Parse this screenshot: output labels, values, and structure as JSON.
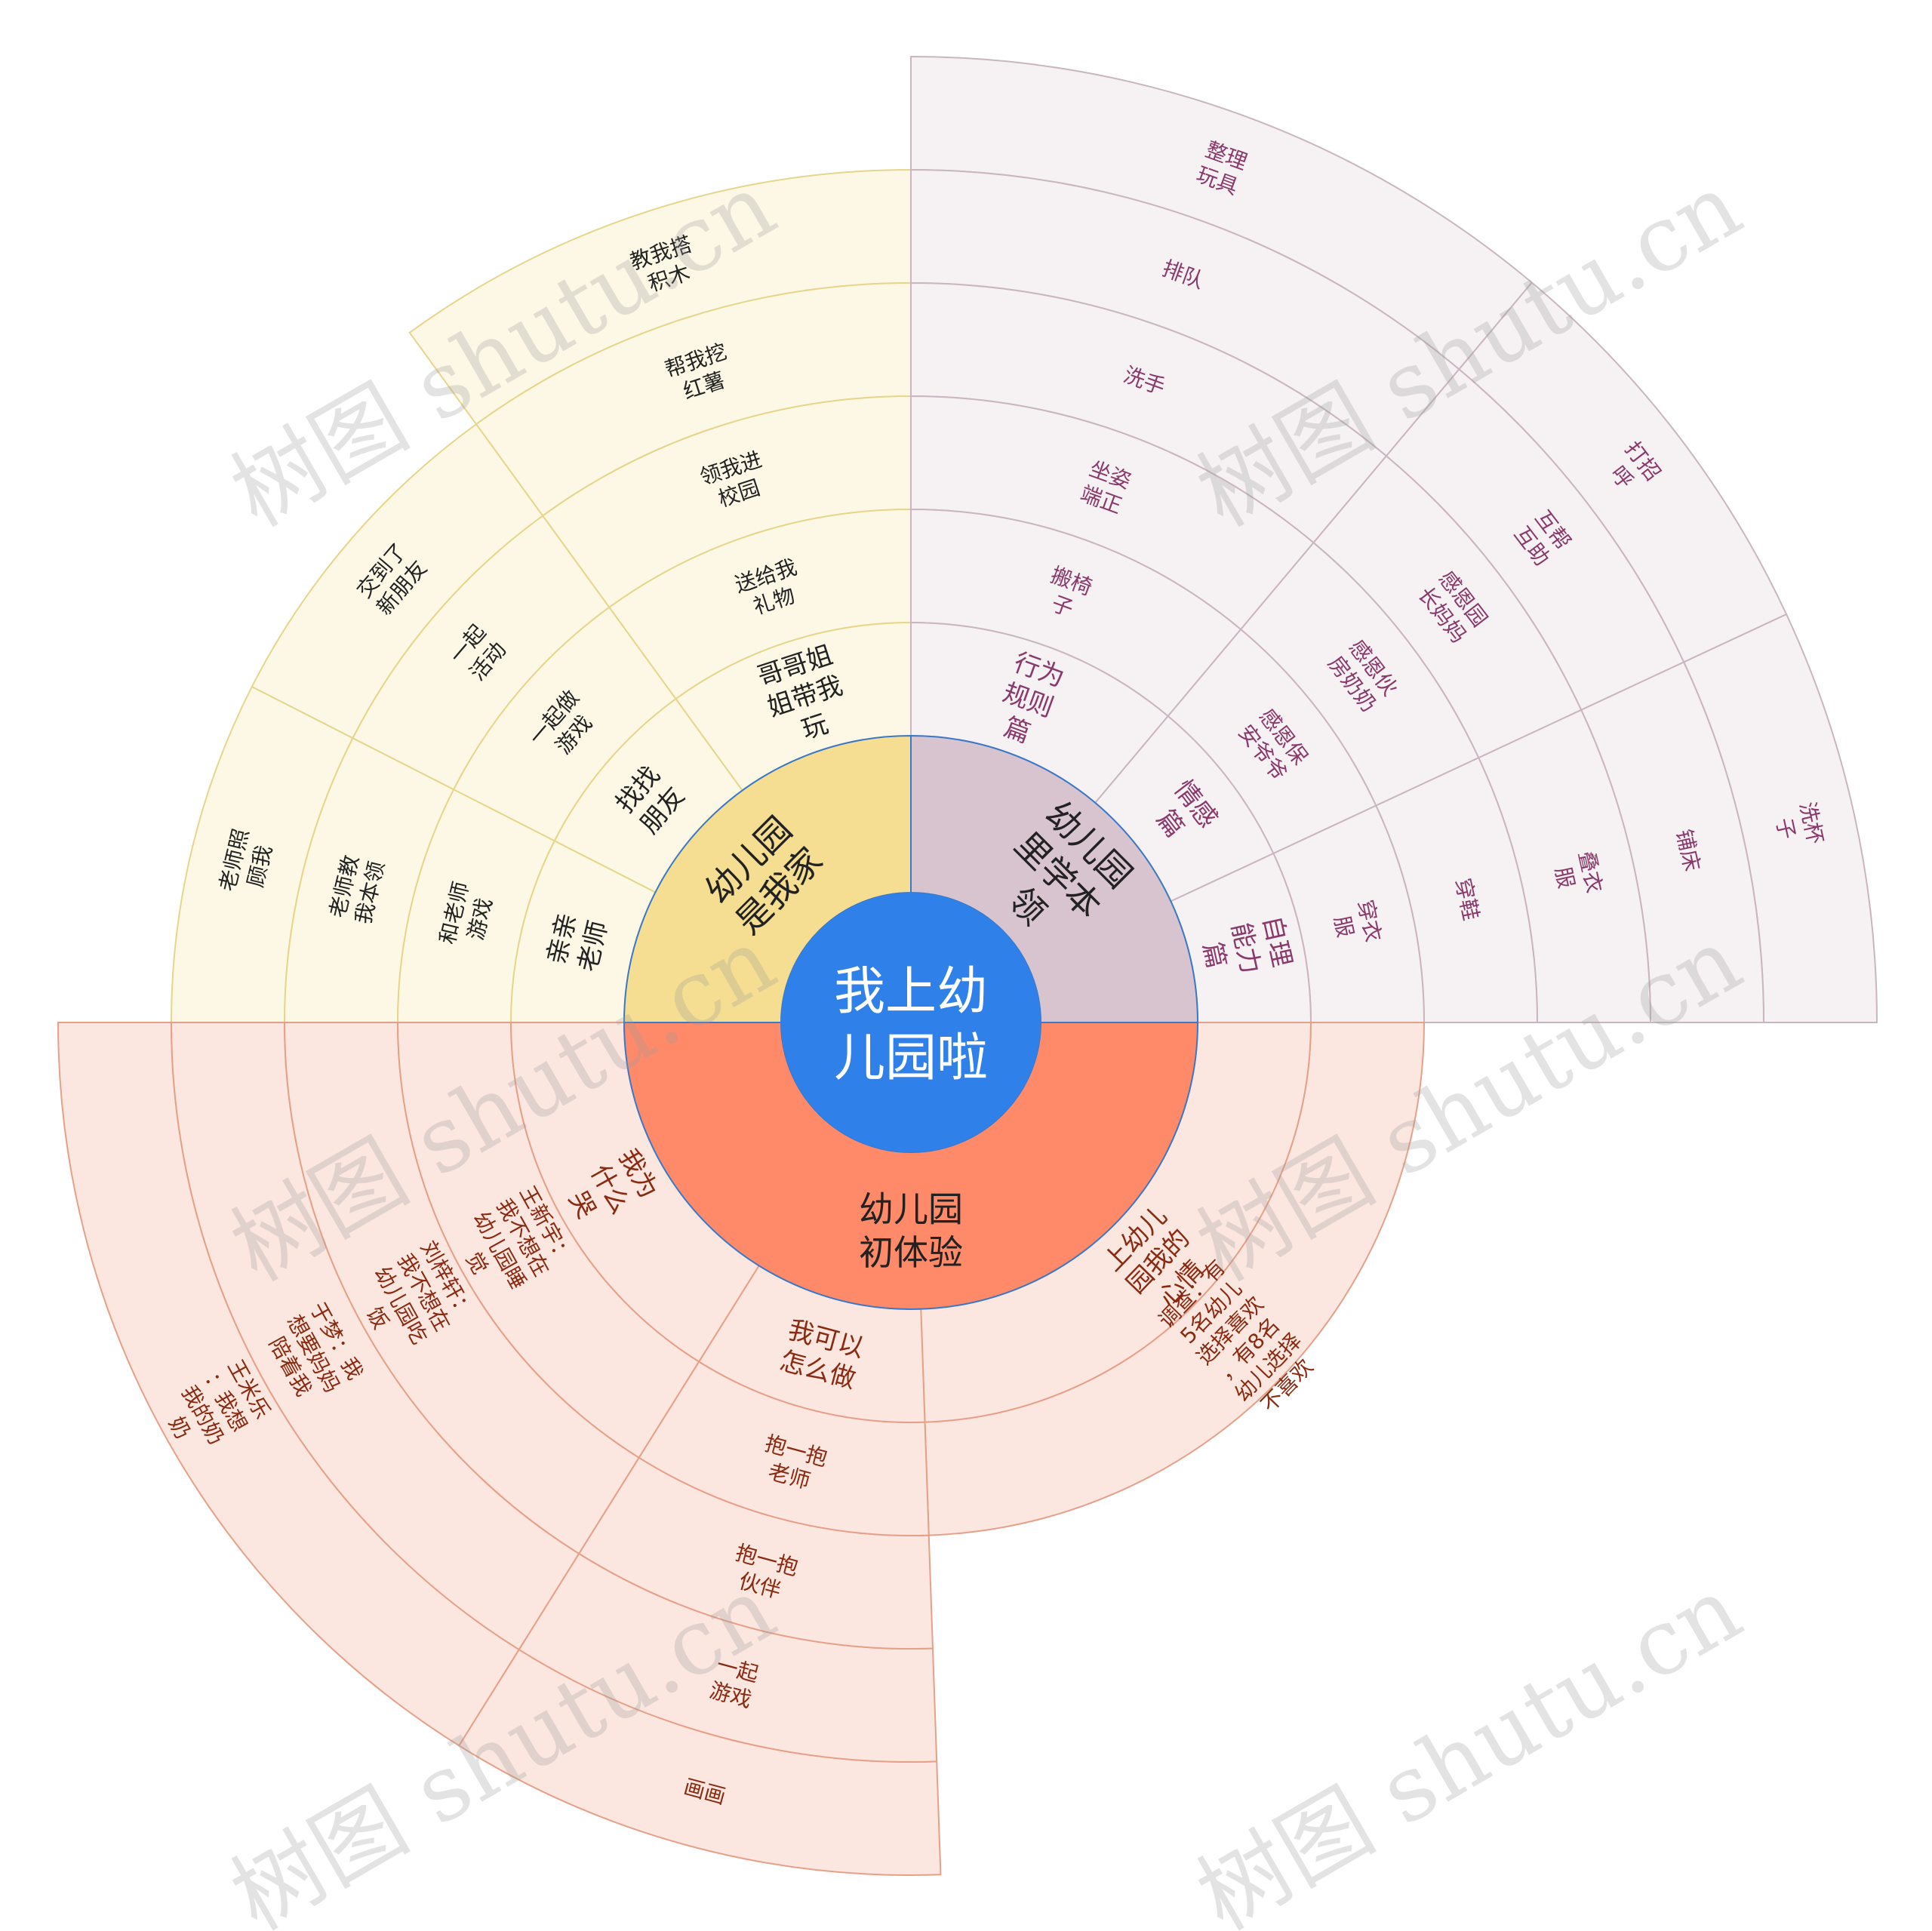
{
  "center": {
    "label": "我上幼儿园啦",
    "color": "#2F80E8",
    "text_color": "#FFFFFF"
  },
  "branches": [
    {
      "id": "home",
      "label": "幼儿园是我家",
      "color": "#F5DE91",
      "fill": "#FDF8E6",
      "line": "#E6D58A",
      "text_color": "#222222",
      "children": [
        {
          "label": "哥哥姐姐带我玩",
          "children": [
            "送给我礼物",
            "领我进校园",
            "帮我挖红薯",
            "教我搭积木"
          ]
        },
        {
          "label": "找找朋友",
          "children": [
            "一起做游戏",
            "一起活动",
            "交到了新朋友"
          ]
        },
        {
          "label": "亲亲老师",
          "children": [
            "和老师游戏",
            "老师教我本领",
            "老师照顾我"
          ]
        }
      ]
    },
    {
      "id": "skills",
      "label": "幼儿园里学本领",
      "color": "#D8C4CE",
      "fill": "#F6F1F3",
      "line": "#C9B6C0",
      "text_color": "#8A3A6A",
      "children": [
        {
          "label": "行为规则篇",
          "children": [
            "搬椅子",
            "坐姿端正",
            "洗手",
            "排队",
            "整理玩具"
          ]
        },
        {
          "label": "情感篇",
          "children": [
            "感恩保安爷爷",
            "感恩伙房奶奶",
            "感恩园长妈妈",
            "互帮互助",
            "打招呼"
          ]
        },
        {
          "label": "自理能力篇",
          "children": [
            "穿衣服",
            "穿鞋",
            "叠衣服",
            "铺床",
            "洗杯子"
          ]
        }
      ]
    },
    {
      "id": "experience",
      "label": "幼儿园初体验",
      "color": "#FF8A6A",
      "fill": "#FCE6E0",
      "line": "#E7A088",
      "text_color": "#8A2A10",
      "children": [
        {
          "label": "上幼儿园我的心情",
          "children": [
            "调查：有5名幼儿选择喜欢，有8名幼儿选择不喜欢"
          ]
        },
        {
          "label": "我可以怎么做",
          "children": [
            "抱一抱老师",
            "抱一抱伙伴",
            "一起游戏",
            "画画"
          ]
        },
        {
          "label": "我为什么哭",
          "children": [
            "王新宇：我不想在幼儿园睡觉",
            "刘梓轩：我不想在幼儿园吃饭",
            "于梦：我想要妈妈陪着我",
            "王米乐：我想我的奶奶"
          ]
        }
      ]
    }
  ],
  "watermark": "树图 shutu.cn"
}
